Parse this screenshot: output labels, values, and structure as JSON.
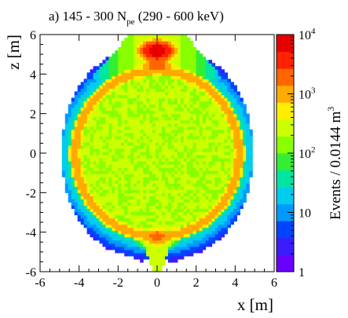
{
  "chart_data": {
    "type": "heatmap",
    "title_prefix": "a) 145 - 300 N",
    "title_sub": "pe",
    "title_suffix": " (290 - 600 keV)",
    "xlabel": "x [m]",
    "ylabel": "z [m]",
    "xlim": [
      -6,
      6
    ],
    "ylim": [
      -6,
      6
    ],
    "x_ticks": [
      -6,
      -4,
      -2,
      0,
      2,
      4,
      6
    ],
    "y_ticks": [
      -6,
      -4,
      -2,
      0,
      2,
      4,
      6
    ],
    "x_tick_labels": [
      "-6",
      "-4",
      "-2",
      "0",
      "2",
      "4",
      "6"
    ],
    "y_tick_labels": [
      "-6",
      "-4",
      "-2",
      "0",
      "2",
      "4",
      "6"
    ],
    "colorbar": {
      "label_main": "Events / 0.0144 m",
      "label_sup": "3",
      "scale": "log",
      "range": [
        1,
        10000
      ],
      "tick_labels": [
        {
          "value": 1,
          "base": "1",
          "exp": ""
        },
        {
          "value": 10,
          "base": "10",
          "exp": ""
        },
        {
          "value": 100,
          "base": "10",
          "exp": "2"
        },
        {
          "value": 1000,
          "base": "10",
          "exp": "3"
        },
        {
          "value": 10000,
          "base": "10",
          "exp": "4"
        }
      ]
    },
    "colormap": [
      "#6a00ff",
      "#3a1cff",
      "#0044ff",
      "#0099ff",
      "#00ccee",
      "#00e6a0",
      "#33ee33",
      "#88ff00",
      "#ccff00",
      "#ffee00",
      "#ffaa00",
      "#ff6600",
      "#ff2200",
      "#e60000"
    ],
    "distribution": {
      "sphere_radius_m": 4.25,
      "interior_events": 200,
      "shell_peak_events": 1200,
      "outer_halo_events": 40,
      "hot_spots": [
        {
          "x": 0.0,
          "z": 5.2,
          "events": 10000
        },
        {
          "x": 0.0,
          "z": 4.5,
          "events": 2500
        },
        {
          "x": 0.0,
          "z": -4.2,
          "events": 2000
        }
      ]
    }
  }
}
